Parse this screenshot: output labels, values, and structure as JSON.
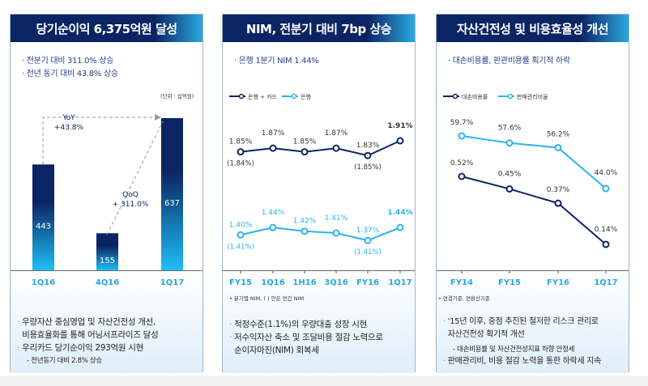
{
  "colors": {
    "navy": "#0b2463",
    "sky": "#2ab4ec",
    "axis_label": "#2aa8e0"
  },
  "panels": [
    {
      "title": "당기순이익 6,375억원 달성",
      "bullets": [
        "전분기 대비 311.0% 상승",
        "전년 동기 대비 43.8% 상승"
      ],
      "unit": "(단위 : 십억원)",
      "notes": [
        "우량자산 중심영업 및 자산건전성 개선,",
        "비용효율화를 통해 어닝서프라이즈 달성",
        "우리카드 당기순이익 293억원 시현",
        "- 전년동기 대비  2.8% 상승"
      ],
      "annotations": {
        "yoy": "YoY",
        "yoy_val": "+43.8%",
        "qoq": "QoQ",
        "qoq_val": "+ 311.0%"
      }
    },
    {
      "title": "NIM, 전분기 대비  7bp 상승",
      "bullets": [
        "은행 1분기 NIM 1.44%"
      ],
      "footnote": "• 분기별 NIM, ( ) 안은 연간 NIM",
      "notes": [
        "적정수준(1.1%)의 우량대출 성장 시현",
        "저수익자산 축소 및 조달비용 절감 노력으로",
        "순이자마진(NIM) 회복세"
      ]
    },
    {
      "title": "자산건전성 및 비용효율성 개선",
      "bullets": [
        "대손비용률, 판관비용률 획기적 하락"
      ],
      "footnote": "• 연결기준, 연환산기준",
      "notes": [
        "'15년 이후,  중점 추진된 철저한 리스크 관리로",
        "자산건전성 획기적 개선",
        "- 대손비용률 및 자산건전성지표 하향 안정세",
        "판매관리비, 비용 절감 노력을 통한  하락세  지속"
      ]
    }
  ],
  "chart_data": [
    {
      "type": "bar",
      "categories": [
        "1Q16",
        "4Q16",
        "1Q17"
      ],
      "values": [
        443,
        155,
        637
      ],
      "ylabel": "(단위 : 십억원)"
    },
    {
      "type": "line",
      "categories": [
        "FY15",
        "1Q16",
        "1H16",
        "3Q16",
        "FY16",
        "1Q17"
      ],
      "series": [
        {
          "name": "은행 + 카드",
          "values": [
            1.85,
            1.87,
            1.85,
            1.87,
            1.83,
            1.91
          ],
          "labels": [
            "1.85%",
            "1.87%",
            "1.85%",
            "1.87%",
            "1.83%",
            "1.91%"
          ],
          "annual": {
            "0": "(1.84%)",
            "4": "(1.85%)"
          }
        },
        {
          "name": "은행",
          "values": [
            1.4,
            1.44,
            1.42,
            1.41,
            1.37,
            1.44
          ],
          "labels": [
            "1.40%",
            "1.44%",
            "1.42%",
            "1.41%",
            "1.37%",
            "1.44%"
          ],
          "annual": {
            "0": "(1.41%)",
            "4": "(1.41%)"
          }
        }
      ]
    },
    {
      "type": "line",
      "categories": [
        "FY14",
        "FY15",
        "FY16",
        "1Q17"
      ],
      "series": [
        {
          "name": "대손비용률",
          "values": [
            0.52,
            0.45,
            0.37,
            0.14
          ],
          "labels": [
            "0.52%",
            "0.45%",
            "0.37%",
            "0.14%"
          ]
        },
        {
          "name": "판매관리비율",
          "values": [
            59.7,
            57.6,
            56.2,
            44.0
          ],
          "labels": [
            "59.7%",
            "57.6%",
            "56.2%",
            "44.0%"
          ]
        }
      ]
    }
  ]
}
